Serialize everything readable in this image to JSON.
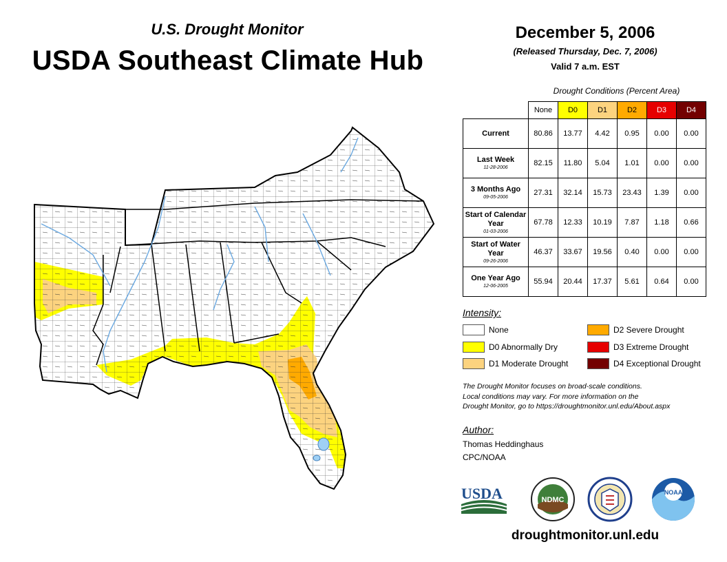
{
  "header": {
    "subtitle": "U.S. Drought Monitor",
    "title": "USDA Southeast Climate Hub",
    "date": "December 5, 2006",
    "released": "(Released Thursday, Dec. 7, 2006)",
    "valid": "Valid 7 a.m. EST"
  },
  "table": {
    "caption": "Drought Conditions (Percent Area)",
    "columns": [
      "None",
      "D0",
      "D1",
      "D2",
      "D3",
      "D4"
    ],
    "rows": [
      {
        "label": "Current",
        "sub": "",
        "values": [
          "80.86",
          "13.77",
          "4.42",
          "0.95",
          "0.00",
          "0.00"
        ]
      },
      {
        "label": "Last Week",
        "sub": "11-28-2006",
        "values": [
          "82.15",
          "11.80",
          "5.04",
          "1.01",
          "0.00",
          "0.00"
        ]
      },
      {
        "label": "3 Months Ago",
        "sub": "09-05-2006",
        "values": [
          "27.31",
          "32.14",
          "15.73",
          "23.43",
          "1.39",
          "0.00"
        ]
      },
      {
        "label": "Start of Calendar Year",
        "sub": "01-03-2006",
        "values": [
          "67.78",
          "12.33",
          "10.19",
          "7.87",
          "1.18",
          "0.66"
        ]
      },
      {
        "label": "Start of Water Year",
        "sub": "09-26-2006",
        "values": [
          "46.37",
          "33.67",
          "19.56",
          "0.40",
          "0.00",
          "0.00"
        ]
      },
      {
        "label": "One Year Ago",
        "sub": "12-06-2005",
        "values": [
          "55.94",
          "20.44",
          "17.37",
          "5.61",
          "0.64",
          "0.00"
        ]
      }
    ]
  },
  "legend": {
    "title": "Intensity:",
    "items": [
      {
        "label": "None",
        "color": "#ffffff"
      },
      {
        "label": "D0 Abnormally Dry",
        "color": "#ffff00"
      },
      {
        "label": "D1 Moderate Drought",
        "color": "#fcd37f"
      },
      {
        "label": "D2 Severe Drought",
        "color": "#ffaa00"
      },
      {
        "label": "D3 Extreme Drought",
        "color": "#e60000"
      },
      {
        "label": "D4 Exceptional Drought",
        "color": "#730000"
      }
    ]
  },
  "note": {
    "line1": "The Drought Monitor focuses on broad-scale conditions.",
    "line2": "Local conditions may vary. For more information on the",
    "line3": "Drought Monitor, go to https://droughtmonitor.unl.edu/About.aspx"
  },
  "author": {
    "title": "Author:",
    "name": "Thomas Heddinghaus",
    "org": "CPC/NOAA"
  },
  "logos": {
    "usda": "USDA",
    "ndmc": "NDMC",
    "noaa": "NOAA"
  },
  "footer_url": "droughtmonitor.unl.edu"
}
